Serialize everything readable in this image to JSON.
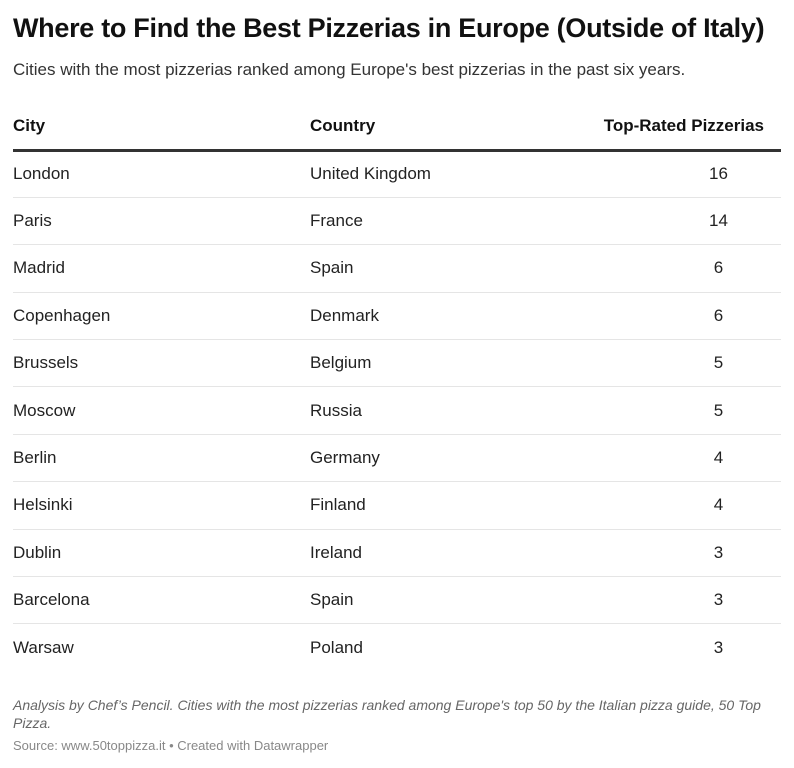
{
  "title": "Where to Find the Best Pizzerias in Europe (Outside of Italy)",
  "subtitle": "Cities with the most pizzerias ranked among Europe's best pizzerias in the past six years.",
  "chart_data": {
    "type": "table",
    "columns": [
      "City",
      "Country",
      "Top-Rated Pizzerias"
    ],
    "rows": [
      [
        "London",
        "United Kingdom",
        "16"
      ],
      [
        "Paris",
        "France",
        "14"
      ],
      [
        "Madrid",
        "Spain",
        "6"
      ],
      [
        "Copenhagen",
        "Denmark",
        "6"
      ],
      [
        "Brussels",
        "Belgium",
        "5"
      ],
      [
        "Moscow",
        "Russia",
        "5"
      ],
      [
        "Berlin",
        "Germany",
        "4"
      ],
      [
        "Helsinki",
        "Finland",
        "4"
      ],
      [
        "Dublin",
        "Ireland",
        "3"
      ],
      [
        "Barcelona",
        "Spain",
        "3"
      ],
      [
        "Warsaw",
        "Poland",
        "3"
      ]
    ]
  },
  "notes": "Analysis by Chef’s Pencil. Cities with the most pizzerias ranked among Europe's top 50 by the Italian pizza guide, 50 Top Pizza.",
  "source": "Source: www.50toppizza.it • Created with Datawrapper"
}
